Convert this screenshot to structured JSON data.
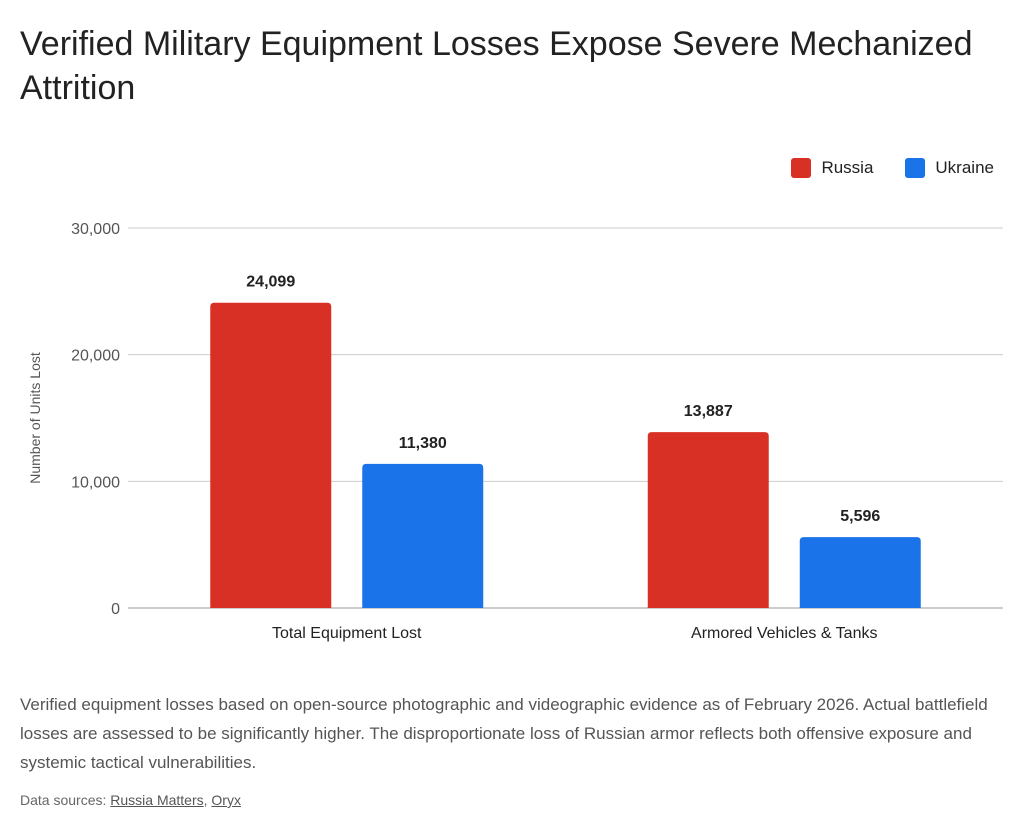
{
  "title": "Verified Military Equipment Losses Expose Severe Mechanized Attrition",
  "description": "Verified equipment losses based on open-source photographic and videographic evidence as of February 2026. Actual battlefield losses are assessed to be significantly higher. The disproportionate loss of Russian armor reflects both offensive exposure and systemic tactical vulnerabilities.",
  "sources": {
    "label": "Data sources:",
    "links": [
      "Russia Matters",
      "Oryx"
    ]
  },
  "chart_data": {
    "type": "bar",
    "title": "Verified Military Equipment Losses Expose Severe Mechanized Attrition",
    "xlabel": "",
    "ylabel": "Number of Units Lost",
    "ylim": [
      0,
      30000
    ],
    "yticks": [
      0,
      10000,
      20000,
      30000
    ],
    "ytick_labels": [
      "0",
      "10,000",
      "20,000",
      "30,000"
    ],
    "grid": true,
    "legend_position": "top-right",
    "categories": [
      "Total Equipment Lost",
      "Armored Vehicles & Tanks"
    ],
    "series": [
      {
        "name": "Russia",
        "color": "#d93025",
        "values": [
          24099,
          13887
        ],
        "labels": [
          "24,099",
          "13,887"
        ]
      },
      {
        "name": "Ukraine",
        "color": "#1a73e8",
        "values": [
          11380,
          5596
        ],
        "labels": [
          "11,380",
          "5,596"
        ]
      }
    ]
  }
}
